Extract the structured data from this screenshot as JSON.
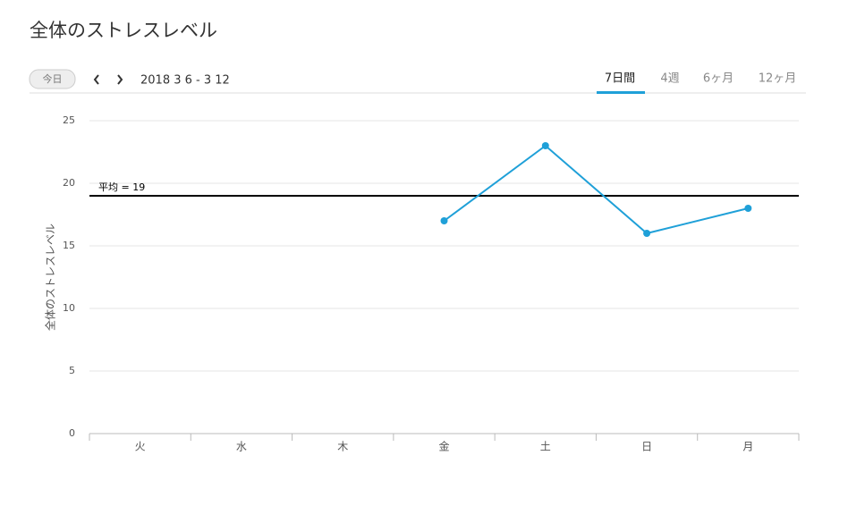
{
  "header": {
    "title": "全体のストレスレベル"
  },
  "toolbar": {
    "today": "今日",
    "date_range": "2018 3 6 - 3 12",
    "tabs": [
      "7日間",
      "4週",
      "6ヶ月",
      "12ヶ月"
    ],
    "active_tab": 0
  },
  "chart_data": {
    "type": "line",
    "y_label": "全体のストレスレベル",
    "categories": [
      "火",
      "水",
      "木",
      "金",
      "土",
      "日",
      "月"
    ],
    "series": [
      {
        "name": "全体のストレスレベル",
        "color": "#1fa0d8",
        "values": [
          null,
          null,
          null,
          17,
          23,
          16,
          18
        ]
      }
    ],
    "reference_line": {
      "value": 19,
      "label": "平均 = 19"
    },
    "ylim": [
      0,
      25
    ],
    "yticks": [
      0,
      5,
      10,
      15,
      20,
      25
    ],
    "grid": true
  }
}
